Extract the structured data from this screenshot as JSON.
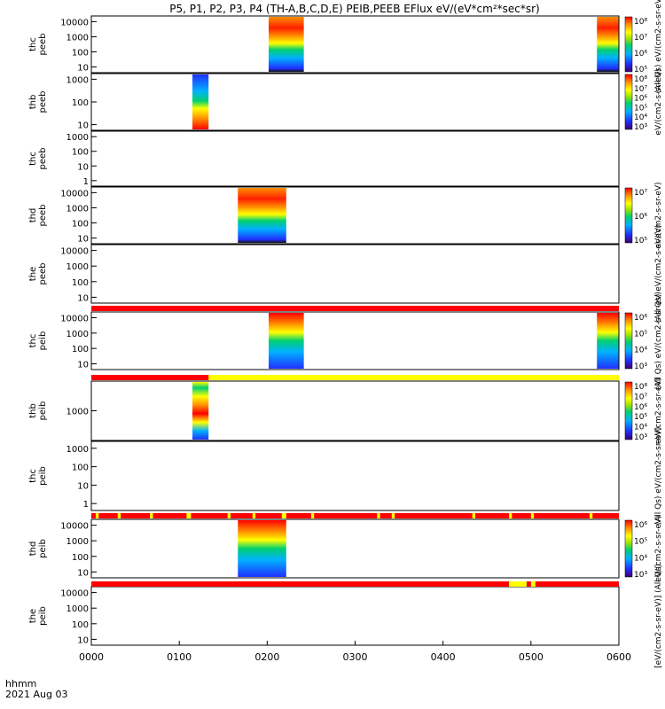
{
  "title": "P5, P1, P2, P3, P4 (TH-A,B,C,D,E) PEIB,PEEB EFlux eV/(eV*cm²*sec*sr)",
  "footer": {
    "time_label": "hhmm",
    "date_label": "2021 Aug 03"
  },
  "colors": {
    "flag_red": "#ff0000",
    "flag_yellow": "#ffff00",
    "spectrogram_scale": [
      "#3a0070",
      "#2030ff",
      "#00b0ff",
      "#00d070",
      "#a0e000",
      "#ffff00",
      "#ff9000",
      "#ff0000"
    ]
  },
  "chart_data": {
    "type": "heatmap",
    "title": "P5, P1, P2, P3, P4 (TH-A,B,C,D,E) PEIB,PEEB EFlux eV/(eV*cm²*sec*sr)",
    "x_axis": {
      "label": "hhmm",
      "date": "2021 Aug 03",
      "range": [
        "0000",
        "0600"
      ],
      "ticks": [
        "0000",
        "0100",
        "0200",
        "0300",
        "0400",
        "0500",
        "0600"
      ],
      "scale": "time"
    },
    "panels": [
      {
        "id": "thc_peeb",
        "ylabel": "thc\npeeb",
        "yscale": "log",
        "yticks": [
          "10",
          "100",
          "1000",
          "10000"
        ],
        "colorbar": {
          "label": "(All Qs) eV/(cm2-s-sr-eV)",
          "ticks": [
            "10⁵",
            "10⁶",
            "10⁷",
            "10⁸"
          ]
        },
        "blocks": [
          {
            "start": "0201",
            "end": "0225"
          },
          {
            "start": "0545",
            "end": "0600"
          }
        ]
      },
      {
        "id": "thb_peeb",
        "ylabel": "thb\npeeb",
        "yscale": "log",
        "yticks": [
          "10",
          "100",
          "1000"
        ],
        "colorbar": {
          "label": "eV/(cm2-s-sr-eV)",
          "ticks": [
            "10³",
            "10⁴",
            "10⁵",
            "10⁶",
            "10⁷",
            "10⁸"
          ]
        },
        "blocks": [
          {
            "start": "0109",
            "end": "0120"
          }
        ]
      },
      {
        "id": "thc_peeb_2",
        "ylabel": "thc\npeeb",
        "yscale": "log",
        "yticks": [
          "1",
          "10",
          "100",
          "1000"
        ],
        "colorbar": {
          "label": "",
          "ticks": []
        },
        "blocks": []
      },
      {
        "id": "thd_peeb",
        "ylabel": "thd\npeeb",
        "yscale": "log",
        "yticks": [
          "10",
          "100",
          "1000",
          "10000"
        ],
        "colorbar": {
          "label": "eV/(cm2-s-sr-eV)",
          "ticks": [
            "10⁵",
            "10⁶",
            "10⁷"
          ]
        },
        "blocks": [
          {
            "start": "0140",
            "end": "0213"
          }
        ]
      },
      {
        "id": "the_peeb",
        "ylabel": "the\npeeb",
        "yscale": "log",
        "yticks": [
          "10",
          "100",
          "1000",
          "10000"
        ],
        "colorbar": {
          "label": "(All Qs) eV/(cm2-s-sr-eV)",
          "ticks": []
        },
        "blocks": []
      },
      {
        "id": "thc_peib",
        "ylabel": "thc\npeib",
        "yscale": "log",
        "yticks": [
          "10",
          "100",
          "1000",
          "10000"
        ],
        "colorbar": {
          "label": "(All Qs) eV/(cm2-s-sr-eV)",
          "ticks": [
            "10³",
            "10⁴",
            "10⁵",
            "10⁶"
          ]
        },
        "blocks": [
          {
            "start": "0201",
            "end": "0225"
          },
          {
            "start": "0545",
            "end": "0600"
          }
        ]
      },
      {
        "id": "thb_peib",
        "ylabel": "thb\npeib",
        "yscale": "log",
        "yticks": [
          "1000"
        ],
        "colorbar": {
          "label": "eV/(cm2-s-sr-eV)",
          "ticks": [
            "10³",
            "10⁴",
            "10⁵",
            "10⁶",
            "10⁷",
            "10⁸"
          ]
        },
        "blocks": [
          {
            "start": "0109",
            "end": "0120"
          }
        ]
      },
      {
        "id": "thc_peib_2",
        "ylabel": "thc\npeib",
        "yscale": "log",
        "yticks": [
          "1",
          "10",
          "100",
          "1000"
        ],
        "colorbar": {
          "label": "(All Qs) eV/(cm2-s-sr-eV)",
          "ticks": []
        },
        "blocks": []
      },
      {
        "id": "thd_peib",
        "ylabel": "thd\npeib",
        "yscale": "log",
        "yticks": [
          "10",
          "100",
          "1000",
          "10000"
        ],
        "colorbar": {
          "label": "eV/(cm2-s-sr-eV)",
          "ticks": [
            "10³",
            "10⁴",
            "10⁵",
            "10⁶"
          ]
        },
        "blocks": [
          {
            "start": "0140",
            "end": "0213"
          }
        ]
      },
      {
        "id": "the_peib",
        "ylabel": "the\npeib",
        "yscale": "log",
        "yticks": [
          "10",
          "100",
          "1000",
          "10000"
        ],
        "colorbar": {
          "label": "[eV/(cm2-s-sr-eV)] (All Qs)",
          "ticks": []
        },
        "blocks": []
      }
    ],
    "flag_bars": [
      {
        "after_panel": "the_peeb",
        "default": "red",
        "yellow_segments": []
      },
      {
        "after_panel": "thc_peib",
        "default": "yellow",
        "red_segments": [
          {
            "start": "0000",
            "end": "0120"
          }
        ]
      },
      {
        "after_panel": "thc_peib_2",
        "default": "red",
        "yellow_segments": [
          {
            "start": "0003",
            "end": "0005"
          },
          {
            "start": "0018",
            "end": "0020"
          },
          {
            "start": "0040",
            "end": "0042"
          },
          {
            "start": "0105",
            "end": "0108"
          },
          {
            "start": "0133",
            "end": "0135"
          },
          {
            "start": "0150",
            "end": "0152"
          },
          {
            "start": "0210",
            "end": "0213"
          },
          {
            "start": "0230",
            "end": "0232"
          },
          {
            "start": "0315",
            "end": "0317"
          },
          {
            "start": "0325",
            "end": "0327"
          },
          {
            "start": "0420",
            "end": "0422"
          },
          {
            "start": "0445",
            "end": "0447"
          },
          {
            "start": "0500",
            "end": "0502"
          },
          {
            "start": "0540",
            "end": "0542"
          }
        ]
      },
      {
        "after_panel": "thd_peib",
        "default": "red",
        "yellow_segments": [
          {
            "start": "0445",
            "end": "0457"
          },
          {
            "start": "0500",
            "end": "0503"
          }
        ]
      }
    ]
  }
}
